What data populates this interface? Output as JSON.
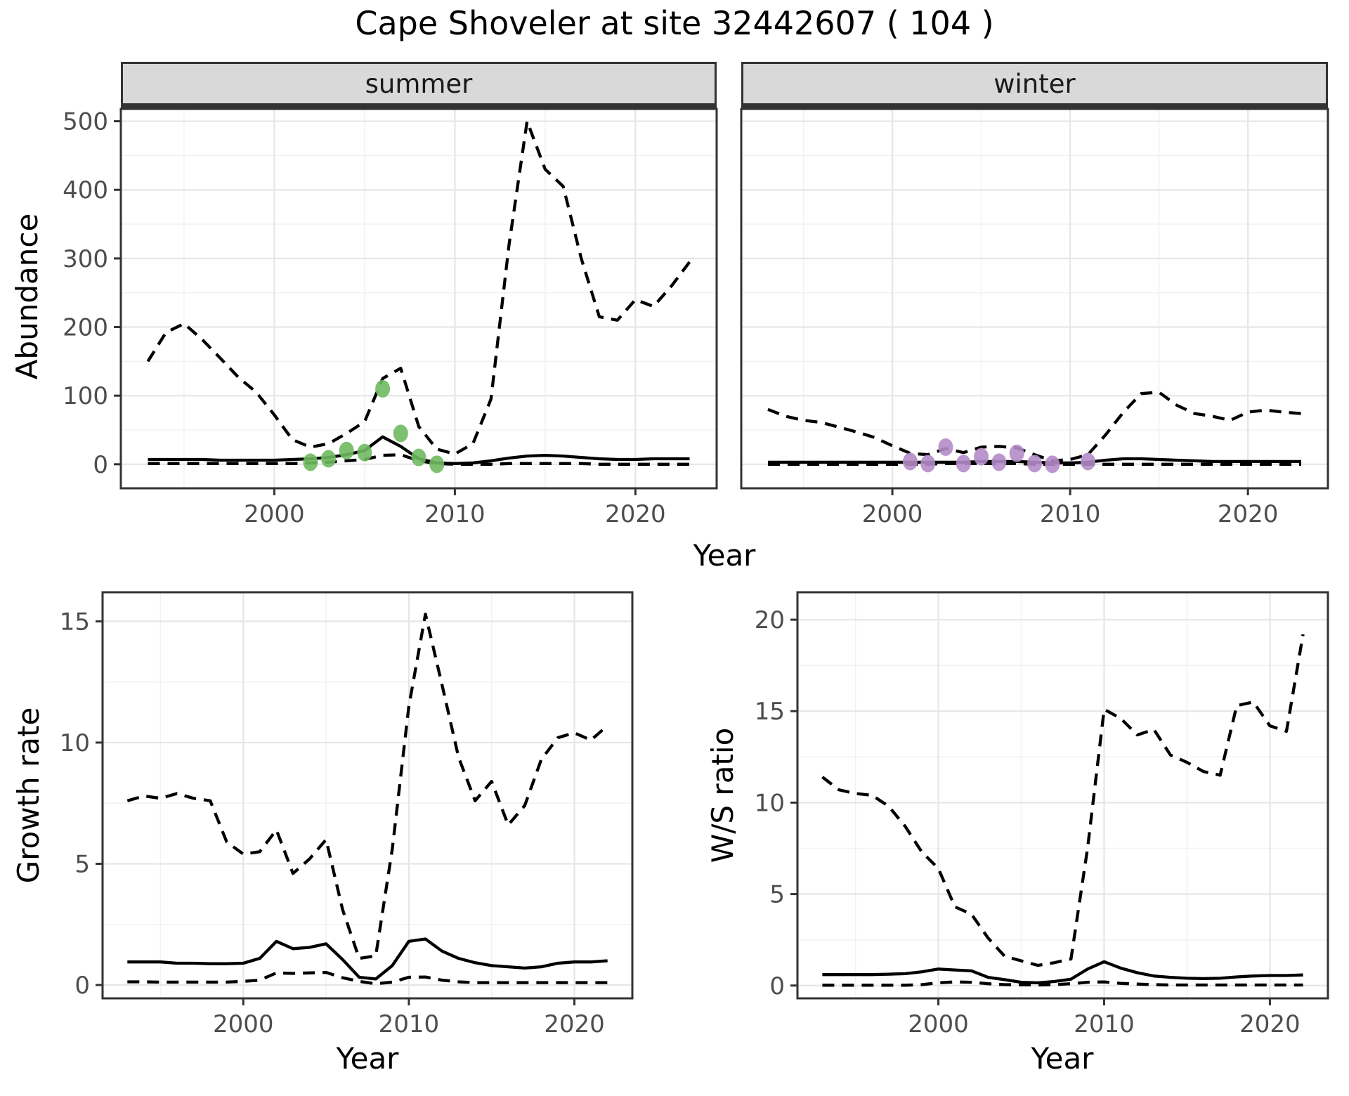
{
  "title": "Cape Shoveler at site 32442607 ( 104 )",
  "facets": {
    "summer": "summer",
    "winter": "winter"
  },
  "axis_labels": {
    "abundance": "Abundance",
    "growth": "Growth rate",
    "ratio": "W/S ratio",
    "year": "Year"
  },
  "colors": {
    "observed_summer": "#6fba60",
    "observed_winter": "#b48cc8",
    "line": "#000000",
    "grid_major": "#e6e6e6",
    "grid_minor": "#f2f2f2",
    "panel_border": "#333333",
    "strip_bg": "#d9d9d9",
    "axis_text": "#4d4d4d"
  },
  "chart_data": [
    {
      "type": "line",
      "panel": "summer",
      "facet_label": "summer",
      "title": "",
      "xlabel": "Year",
      "ylabel": "Abundance",
      "xlim": [
        1991.5,
        2024.5
      ],
      "ylim": [
        -35,
        518
      ],
      "xticks": [
        2000,
        2010,
        2020
      ],
      "yticks": [
        0,
        100,
        200,
        300,
        400,
        500
      ],
      "xminor": [
        1995,
        2005,
        2015
      ],
      "yminor": [
        50,
        150,
        250,
        350,
        450
      ],
      "show_ytick_labels": true,
      "grid": true,
      "legend_position": "none",
      "x": [
        1993,
        1994,
        1995,
        1996,
        1997,
        1998,
        1999,
        2000,
        2001,
        2002,
        2003,
        2004,
        2005,
        2006,
        2007,
        2008,
        2009,
        2010,
        2011,
        2012,
        2013,
        2014,
        2015,
        2016,
        2017,
        2018,
        2019,
        2020,
        2021,
        2022,
        2023
      ],
      "series": [
        {
          "name": "upper_ci",
          "style": "dashed",
          "values": [
            150,
            192,
            205,
            182,
            155,
            127,
            105,
            72,
            36,
            25,
            30,
            45,
            62,
            125,
            140,
            55,
            22,
            15,
            30,
            95,
            320,
            500,
            430,
            405,
            300,
            215,
            210,
            240,
            230,
            260,
            295
          ]
        },
        {
          "name": "lower_ci",
          "style": "dashed",
          "values": [
            1,
            1,
            1,
            1,
            1,
            1,
            1,
            1,
            1,
            2,
            3,
            5,
            7,
            13,
            14,
            5,
            1,
            0,
            0,
            0,
            1,
            1,
            1,
            1,
            1,
            0,
            0,
            0,
            0,
            0,
            0
          ]
        },
        {
          "name": "median",
          "style": "solid",
          "values": [
            7,
            7,
            7,
            7,
            6,
            6,
            6,
            6,
            7,
            8,
            10,
            14,
            20,
            40,
            26,
            8,
            2,
            1,
            2,
            5,
            9,
            12,
            13,
            12,
            10,
            8,
            7,
            7,
            8,
            8,
            8
          ]
        }
      ],
      "observations": {
        "name": "observed_counts",
        "color": "#6fba60",
        "points": [
          [
            2002,
            3
          ],
          [
            2003,
            8
          ],
          [
            2004,
            20
          ],
          [
            2005,
            17
          ],
          [
            2006,
            110
          ],
          [
            2007,
            45
          ],
          [
            2008,
            10
          ],
          [
            2009,
            0
          ]
        ]
      }
    },
    {
      "type": "line",
      "panel": "winter",
      "facet_label": "winter",
      "title": "",
      "xlabel": "Year",
      "ylabel": "Abundance",
      "xlim": [
        1991.5,
        2024.5
      ],
      "ylim": [
        -35,
        518
      ],
      "xticks": [
        2000,
        2010,
        2020
      ],
      "yticks": [
        0,
        100,
        200,
        300,
        400,
        500
      ],
      "xminor": [
        1995,
        2005,
        2015
      ],
      "yminor": [
        50,
        150,
        250,
        350,
        450
      ],
      "show_ytick_labels": false,
      "grid": true,
      "legend_position": "none",
      "x": [
        1993,
        1994,
        1995,
        1996,
        1997,
        1998,
        1999,
        2000,
        2001,
        2002,
        2003,
        2004,
        2005,
        2006,
        2007,
        2008,
        2009,
        2010,
        2011,
        2012,
        2013,
        2014,
        2015,
        2016,
        2017,
        2018,
        2019,
        2020,
        2021,
        2022,
        2023
      ],
      "series": [
        {
          "name": "upper_ci",
          "style": "dashed",
          "values": [
            80,
            70,
            64,
            61,
            54,
            47,
            39,
            27,
            16,
            14,
            23,
            17,
            25,
            26,
            24,
            14,
            5,
            7,
            14,
            43,
            76,
            103,
            105,
            86,
            74,
            70,
            64,
            76,
            79,
            76,
            74
          ]
        },
        {
          "name": "lower_ci",
          "style": "dashed",
          "values": [
            0,
            0,
            0,
            0,
            0,
            0,
            0,
            0,
            0,
            0,
            1,
            1,
            1,
            1,
            1,
            0,
            0,
            0,
            0,
            0,
            0,
            0,
            0,
            0,
            0,
            0,
            0,
            0,
            0,
            0,
            0
          ]
        },
        {
          "name": "median",
          "style": "solid",
          "values": [
            3,
            3,
            3,
            3,
            3,
            3,
            3,
            3,
            3,
            3,
            3,
            3,
            4,
            4,
            4,
            3,
            2,
            2,
            3,
            6,
            8,
            8,
            7,
            6,
            5,
            4,
            4,
            4,
            4,
            4,
            4
          ]
        }
      ],
      "observations": {
        "name": "observed_counts",
        "color": "#b48cc8",
        "points": [
          [
            2001,
            4
          ],
          [
            2002,
            1
          ],
          [
            2003,
            25
          ],
          [
            2004,
            1
          ],
          [
            2005,
            11
          ],
          [
            2006,
            3
          ],
          [
            2007,
            16
          ],
          [
            2008,
            1
          ],
          [
            2009,
            0
          ],
          [
            2011,
            4
          ]
        ]
      }
    },
    {
      "type": "line",
      "panel": "growth",
      "facet_label": null,
      "title": "",
      "xlabel": "Year",
      "ylabel": "Growth rate",
      "xlim": [
        1991.5,
        2023.5
      ],
      "ylim": [
        -0.55,
        16.2
      ],
      "xticks": [
        2000,
        2010,
        2020
      ],
      "yticks": [
        0,
        5,
        10,
        15
      ],
      "xminor": [
        1995,
        2005,
        2015
      ],
      "yminor": [
        2.5,
        7.5,
        12.5
      ],
      "show_ytick_labels": true,
      "grid": true,
      "legend_position": "none",
      "x": [
        1993,
        1994,
        1995,
        1996,
        1997,
        1998,
        1999,
        2000,
        2001,
        2002,
        2003,
        2004,
        2005,
        2006,
        2007,
        2008,
        2009,
        2010,
        2011,
        2012,
        2013,
        2014,
        2015,
        2016,
        2017,
        2018,
        2019,
        2020,
        2021,
        2022
      ],
      "series": [
        {
          "name": "upper_ci",
          "style": "dashed",
          "values": [
            7.6,
            7.8,
            7.7,
            7.9,
            7.7,
            7.6,
            5.9,
            5.4,
            5.5,
            6.4,
            4.6,
            5.2,
            6.0,
            3.1,
            1.1,
            1.2,
            5.6,
            11.5,
            15.3,
            12.4,
            9.4,
            7.6,
            8.4,
            6.6,
            7.4,
            9.3,
            10.2,
            10.4,
            10.1,
            10.7
          ]
        },
        {
          "name": "lower_ci",
          "style": "dashed",
          "values": [
            0.13,
            0.13,
            0.12,
            0.12,
            0.12,
            0.12,
            0.12,
            0.15,
            0.2,
            0.5,
            0.48,
            0.5,
            0.52,
            0.3,
            0.15,
            0.05,
            0.12,
            0.32,
            0.33,
            0.2,
            0.13,
            0.1,
            0.1,
            0.1,
            0.1,
            0.1,
            0.1,
            0.1,
            0.1,
            0.1
          ]
        },
        {
          "name": "median",
          "style": "solid",
          "values": [
            0.95,
            0.95,
            0.95,
            0.9,
            0.9,
            0.88,
            0.88,
            0.9,
            1.1,
            1.8,
            1.5,
            1.55,
            1.7,
            1.05,
            0.32,
            0.25,
            0.8,
            1.8,
            1.9,
            1.4,
            1.1,
            0.92,
            0.8,
            0.75,
            0.7,
            0.75,
            0.9,
            0.95,
            0.95,
            1.0
          ]
        }
      ],
      "observations": null
    },
    {
      "type": "line",
      "panel": "ratio",
      "facet_label": null,
      "title": "",
      "xlabel": "Year",
      "ylabel": "W/S ratio",
      "xlim": [
        1991.5,
        2023.5
      ],
      "ylim": [
        -0.7,
        21.5
      ],
      "xticks": [
        2000,
        2010,
        2020
      ],
      "yticks": [
        0,
        5,
        10,
        15,
        20
      ],
      "xminor": [
        1995,
        2005,
        2015
      ],
      "yminor": [
        2.5,
        7.5,
        12.5,
        17.5
      ],
      "show_ytick_labels": true,
      "grid": true,
      "legend_position": "none",
      "x": [
        1993,
        1994,
        1995,
        1996,
        1997,
        1998,
        1999,
        2000,
        2001,
        2002,
        2003,
        2004,
        2005,
        2006,
        2007,
        2008,
        2009,
        2010,
        2011,
        2012,
        2013,
        2014,
        2015,
        2016,
        2017,
        2018,
        2019,
        2020,
        2021,
        2022
      ],
      "series": [
        {
          "name": "upper_ci",
          "style": "dashed",
          "values": [
            11.4,
            10.7,
            10.5,
            10.4,
            9.8,
            8.7,
            7.3,
            6.4,
            4.3,
            3.9,
            2.6,
            1.6,
            1.35,
            1.1,
            1.25,
            1.45,
            7.5,
            15.1,
            14.6,
            13.7,
            14.0,
            12.6,
            12.2,
            11.7,
            11.5,
            15.3,
            15.5,
            14.2,
            13.9,
            19.2
          ]
        },
        {
          "name": "lower_ci",
          "style": "dashed",
          "values": [
            0.02,
            0.02,
            0.02,
            0.02,
            0.02,
            0.02,
            0.05,
            0.15,
            0.2,
            0.18,
            0.1,
            0.05,
            0.04,
            0.03,
            0.05,
            0.1,
            0.18,
            0.2,
            0.12,
            0.08,
            0.05,
            0.03,
            0.03,
            0.03,
            0.03,
            0.03,
            0.03,
            0.03,
            0.03,
            0.03
          ]
        },
        {
          "name": "median",
          "style": "solid",
          "values": [
            0.6,
            0.6,
            0.6,
            0.6,
            0.62,
            0.65,
            0.75,
            0.9,
            0.85,
            0.8,
            0.45,
            0.32,
            0.18,
            0.15,
            0.22,
            0.35,
            0.9,
            1.3,
            0.95,
            0.7,
            0.52,
            0.45,
            0.4,
            0.38,
            0.4,
            0.47,
            0.52,
            0.55,
            0.55,
            0.58
          ]
        }
      ],
      "observations": null
    }
  ]
}
